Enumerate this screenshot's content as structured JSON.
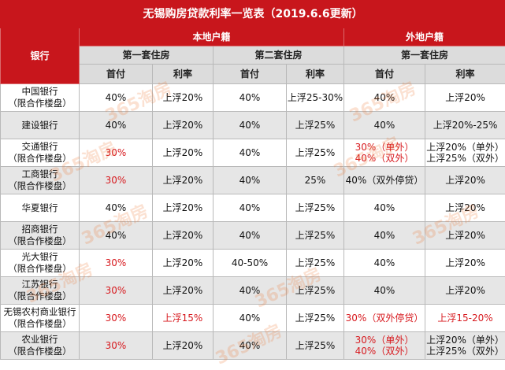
{
  "title": "无锡购房贷款利率一览表（2019.6.6更新）",
  "groups": {
    "local": "本地户籍",
    "nonlocal": "外地户籍"
  },
  "bank_header": "银行",
  "sub_headers": {
    "local_first": "第一套住房",
    "local_second": "第二套住房",
    "nonlocal_first": "第一套住房"
  },
  "col_labels": {
    "down_payment": "首付",
    "rate": "利率"
  },
  "watermark": "365淘房",
  "colors": {
    "title_bg": "#c8161c",
    "highlight_text": "#d7191e",
    "header_gray": "#dcdcdc"
  },
  "rows": [
    {
      "bank": [
        "中国银行",
        "（限合作楼盘）"
      ],
      "l1_down": [
        "40%"
      ],
      "l1_rate": [
        "上浮20%"
      ],
      "l2_down": [
        "40%"
      ],
      "l2_rate": [
        "上浮25-30%"
      ],
      "n1_down": [
        "40%"
      ],
      "n1_rate": [
        "上浮20%"
      ],
      "red": []
    },
    {
      "bank": [
        "建设银行"
      ],
      "l1_down": [
        "40%"
      ],
      "l1_rate": [
        "上浮20%"
      ],
      "l2_down": [
        "40%"
      ],
      "l2_rate": [
        "上浮25%"
      ],
      "n1_down": [
        "40%"
      ],
      "n1_rate": [
        "上浮20%-25%"
      ],
      "red": []
    },
    {
      "bank": [
        "交通银行",
        "（限合作楼盘）"
      ],
      "l1_down": [
        "30%"
      ],
      "l1_rate": [
        "上浮20%"
      ],
      "l2_down": [
        "40%"
      ],
      "l2_rate": [
        "上浮25%"
      ],
      "n1_down": [
        "30%（单外）",
        "40%（双外）"
      ],
      "n1_rate": [
        "上浮20%（单外）",
        "上浮25%（双外）"
      ],
      "red": [
        "l1_down",
        "n1_down"
      ]
    },
    {
      "bank": [
        "工商银行",
        "（限合作楼盘）"
      ],
      "l1_down": [
        "30%"
      ],
      "l1_rate": [
        "上浮20%"
      ],
      "l2_down": [
        "40%"
      ],
      "l2_rate": [
        "25%"
      ],
      "n1_down": [
        "40%（双外停贷）"
      ],
      "n1_rate": [
        "上浮20%"
      ],
      "red": [
        "l1_down"
      ]
    },
    {
      "bank": [
        "华夏银行"
      ],
      "l1_down": [
        "40%"
      ],
      "l1_rate": [
        "上浮20%"
      ],
      "l2_down": [
        "40%"
      ],
      "l2_rate": [
        "上浮25%"
      ],
      "n1_down": [
        "40%"
      ],
      "n1_rate": [
        "上浮20%"
      ],
      "red": []
    },
    {
      "bank": [
        "招商银行",
        "（限合作楼盘）"
      ],
      "l1_down": [
        "40%"
      ],
      "l1_rate": [
        "上浮20%"
      ],
      "l2_down": [
        "40%"
      ],
      "l2_rate": [
        "上浮25%"
      ],
      "n1_down": [
        "40%"
      ],
      "n1_rate": [
        "上浮20%"
      ],
      "red": []
    },
    {
      "bank": [
        "光大银行",
        "（限合作楼盘）"
      ],
      "l1_down": [
        "30%"
      ],
      "l1_rate": [
        "上浮20%"
      ],
      "l2_down": [
        "40-50%"
      ],
      "l2_rate": [
        "上浮25%"
      ],
      "n1_down": [
        "40%"
      ],
      "n1_rate": [
        "上浮20%"
      ],
      "red": [
        "l1_down"
      ]
    },
    {
      "bank": [
        "江苏银行",
        "（限合作楼盘）"
      ],
      "l1_down": [
        "30%"
      ],
      "l1_rate": [
        "上浮20%"
      ],
      "l2_down": [
        "40%"
      ],
      "l2_rate": [
        "上浮25%"
      ],
      "n1_down": [
        "40%"
      ],
      "n1_rate": [
        "上浮20%"
      ],
      "red": [
        "l1_down"
      ]
    },
    {
      "bank": [
        "无锡农村商业银行",
        "（限合作楼盘）"
      ],
      "l1_down": [
        "30%"
      ],
      "l1_rate": [
        "上浮15%"
      ],
      "l2_down": [
        "40%"
      ],
      "l2_rate": [
        "上浮25%"
      ],
      "n1_down": [
        "30%（双外停贷）"
      ],
      "n1_rate": [
        "上浮15-20%"
      ],
      "red": [
        "l1_down",
        "l1_rate",
        "n1_down",
        "n1_rate"
      ]
    },
    {
      "bank": [
        "农业银行",
        "（限合作楼盘）"
      ],
      "l1_down": [
        "30%"
      ],
      "l1_rate": [
        "上浮20%"
      ],
      "l2_down": [
        "40%"
      ],
      "l2_rate": [
        "上浮25%"
      ],
      "n1_down": [
        "30%（单外）",
        "40%（双外）"
      ],
      "n1_rate": [
        "上浮20%（单外）",
        "上浮25%（双外）"
      ],
      "red": [
        "l1_down",
        "n1_down"
      ]
    }
  ]
}
